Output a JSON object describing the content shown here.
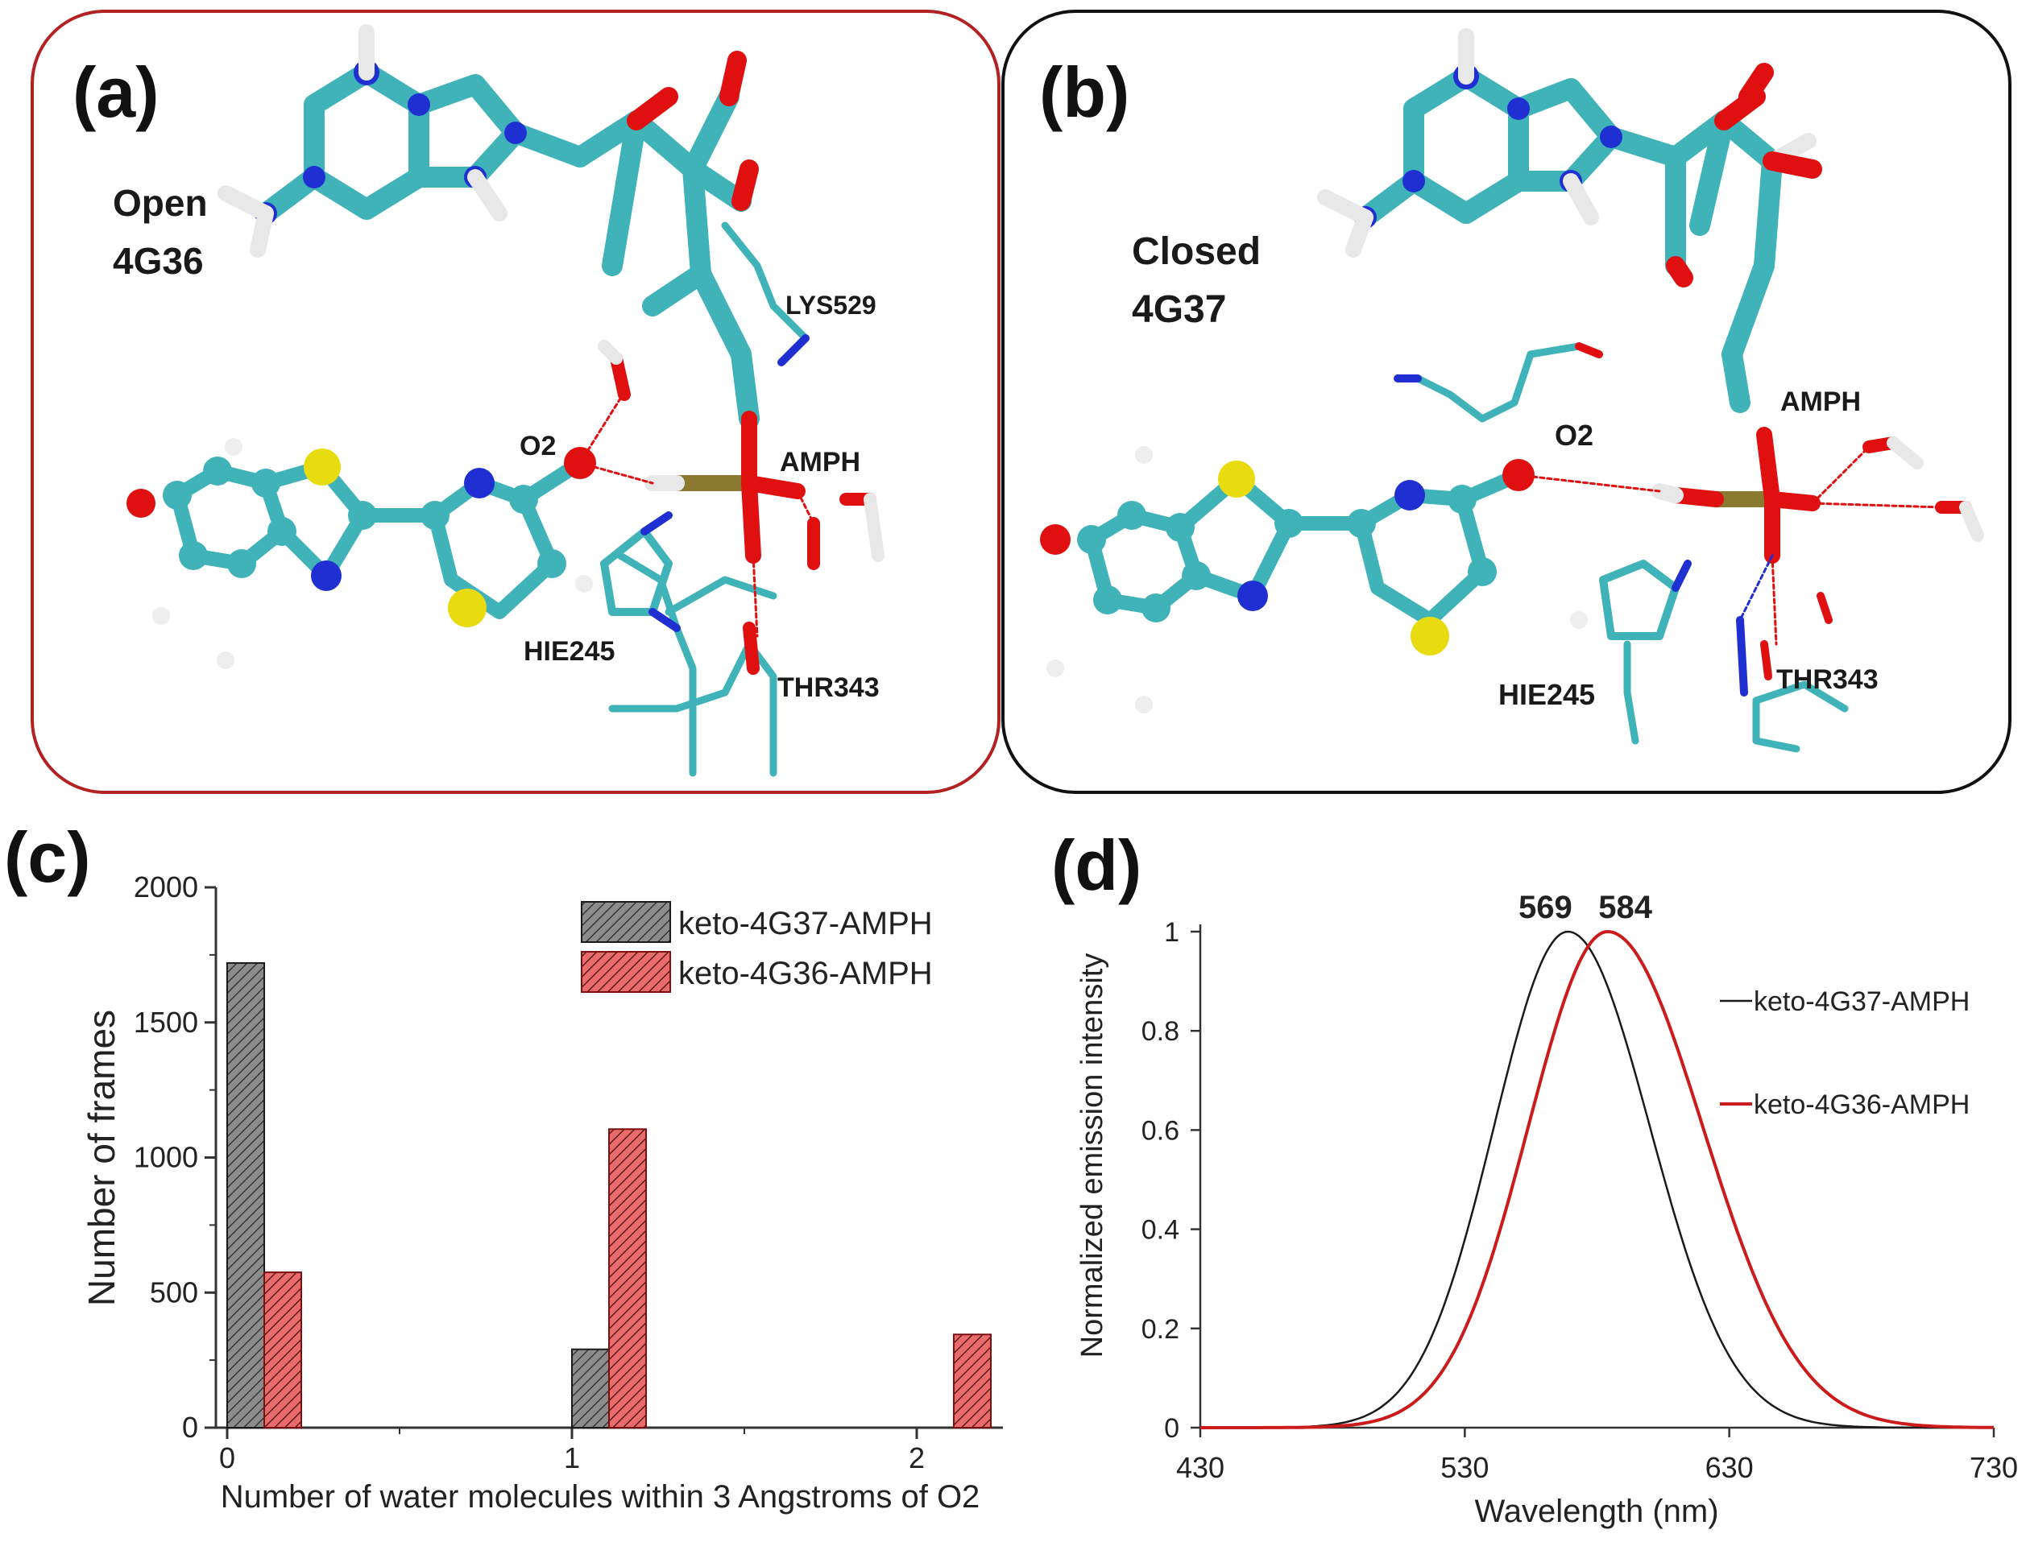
{
  "panels": {
    "a": {
      "letter": "(a)",
      "title_line1": "Open",
      "title_line2": "4G36",
      "residues": [
        "LYS529",
        "AMPH",
        "O2",
        "HIE245",
        "THR343"
      ],
      "border_color": "#b22222"
    },
    "b": {
      "letter": "(b)",
      "title_line1": "Closed",
      "title_line2": "4G37",
      "residues": [
        "AMPH",
        "O2",
        "HIE245",
        "THR343"
      ],
      "border_color": "#111111"
    },
    "c": {
      "letter": "(c)"
    },
    "d": {
      "letter": "(d)"
    }
  },
  "colors": {
    "carbon": "#3fb3b8",
    "nitrogen": "#1f2fd1",
    "oxygen": "#e01010",
    "sulfur": "#e8dc10",
    "hydrogen": "#f0f0f0",
    "phosphorus": "#8a7a30",
    "series_dark": "#1a1a1a",
    "series_red": "#cc1b1b",
    "bar_dark": "#8c8c8c",
    "bar_red": "#e96b6b"
  },
  "chart_data": [
    {
      "type": "bar",
      "panel": "c",
      "xlabel": "Number of water molecules within 3 Angstroms of O2",
      "ylabel": "Number of frames",
      "categories": [
        "0",
        "1",
        "2"
      ],
      "xlim": [
        0,
        2.2
      ],
      "ylim": [
        0,
        2000
      ],
      "yticks": [
        0,
        500,
        1000,
        1500,
        2000
      ],
      "xticks": [
        0,
        1,
        2
      ],
      "legend_position": "top-right",
      "series": [
        {
          "name": "keto-4G37-AMPH",
          "values": [
            1720,
            290,
            0
          ]
        },
        {
          "name": "keto-4G36-AMPH",
          "values": [
            575,
            1105,
            345
          ]
        }
      ]
    },
    {
      "type": "line",
      "panel": "d",
      "xlabel": "Wavelength (nm)",
      "ylabel": "Normalized emission intensity",
      "xlim": [
        430,
        730
      ],
      "ylim": [
        0,
        1
      ],
      "xticks": [
        430,
        530,
        630,
        730
      ],
      "yticks": [
        0,
        0.2,
        0.4,
        0.6,
        0.8,
        1
      ],
      "ytick_labels": [
        "0",
        "0.2",
        "0.4",
        "0.6",
        "0.8",
        "1"
      ],
      "legend_position": "right",
      "peak_labels": [
        "569",
        "584"
      ],
      "series": [
        {
          "name": "keto-4G37-AMPH",
          "peak": 569,
          "points": [
            [
              430,
              0
            ],
            [
              490,
              0.001
            ],
            [
              505,
              0.01
            ],
            [
              520,
              0.05
            ],
            [
              535,
              0.25
            ],
            [
              550,
              0.6
            ],
            [
              560,
              0.88
            ],
            [
              569,
              1
            ],
            [
              580,
              0.93
            ],
            [
              595,
              0.69
            ],
            [
              610,
              0.4
            ],
            [
              625,
              0.16
            ],
            [
              640,
              0.05
            ],
            [
              655,
              0.01
            ],
            [
              670,
              0.001
            ],
            [
              730,
              0
            ]
          ]
        },
        {
          "name": "keto-4G36-AMPH",
          "peak": 584,
          "points": [
            [
              430,
              0
            ],
            [
              500,
              0.001
            ],
            [
              515,
              0.007
            ],
            [
              530,
              0.04
            ],
            [
              545,
              0.17
            ],
            [
              560,
              0.5
            ],
            [
              572,
              0.84
            ],
            [
              584,
              1
            ],
            [
              595,
              0.96
            ],
            [
              610,
              0.77
            ],
            [
              625,
              0.5
            ],
            [
              640,
              0.26
            ],
            [
              655,
              0.11
            ],
            [
              670,
              0.035
            ],
            [
              690,
              0.006
            ],
            [
              710,
              0.001
            ],
            [
              730,
              0
            ]
          ]
        }
      ]
    }
  ]
}
